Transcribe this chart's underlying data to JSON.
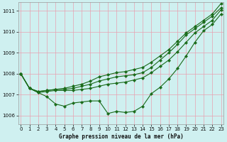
{
  "xlabel": "Graphe pression niveau de la mer (hPa)",
  "bg_color": "#cff0f0",
  "grid_color": "#e8a0b0",
  "line_color": "#1a6b1a",
  "ylim": [
    1005.6,
    1011.4
  ],
  "xlim": [
    -0.3,
    23.3
  ],
  "yticks": [
    1006,
    1007,
    1008,
    1009,
    1010,
    1011
  ],
  "xticks": [
    0,
    1,
    2,
    3,
    4,
    5,
    6,
    7,
    8,
    9,
    10,
    11,
    12,
    13,
    14,
    15,
    16,
    17,
    18,
    19,
    20,
    21,
    22,
    23
  ],
  "series1": [
    1008.0,
    1007.3,
    1007.1,
    1006.9,
    1006.55,
    1006.45,
    1006.6,
    1006.65,
    1006.7,
    1006.7,
    1006.1,
    1006.2,
    1006.15,
    1006.2,
    1006.45,
    1007.05,
    1007.35,
    1007.75,
    1008.25,
    1008.85,
    1009.5,
    1010.05,
    1010.35,
    1010.85
  ],
  "series2": [
    1008.0,
    1007.3,
    1007.1,
    1007.15,
    1007.2,
    1007.2,
    1007.2,
    1007.25,
    1007.3,
    1007.4,
    1007.5,
    1007.55,
    1007.6,
    1007.7,
    1007.8,
    1008.05,
    1008.35,
    1008.65,
    1009.05,
    1009.5,
    1009.95,
    1010.25,
    1010.55,
    1011.05
  ],
  "series3": [
    1008.0,
    1007.3,
    1007.15,
    1007.2,
    1007.25,
    1007.25,
    1007.3,
    1007.4,
    1007.5,
    1007.65,
    1007.75,
    1007.85,
    1007.9,
    1007.95,
    1008.05,
    1008.3,
    1008.65,
    1009.0,
    1009.4,
    1009.85,
    1010.15,
    1010.45,
    1010.75,
    1011.15
  ],
  "series4": [
    1008.0,
    1007.3,
    1007.15,
    1007.2,
    1007.25,
    1007.3,
    1007.4,
    1007.5,
    1007.65,
    1007.85,
    1007.95,
    1008.05,
    1008.1,
    1008.2,
    1008.3,
    1008.55,
    1008.85,
    1009.15,
    1009.55,
    1009.95,
    1010.25,
    1010.55,
    1010.85,
    1011.35
  ]
}
